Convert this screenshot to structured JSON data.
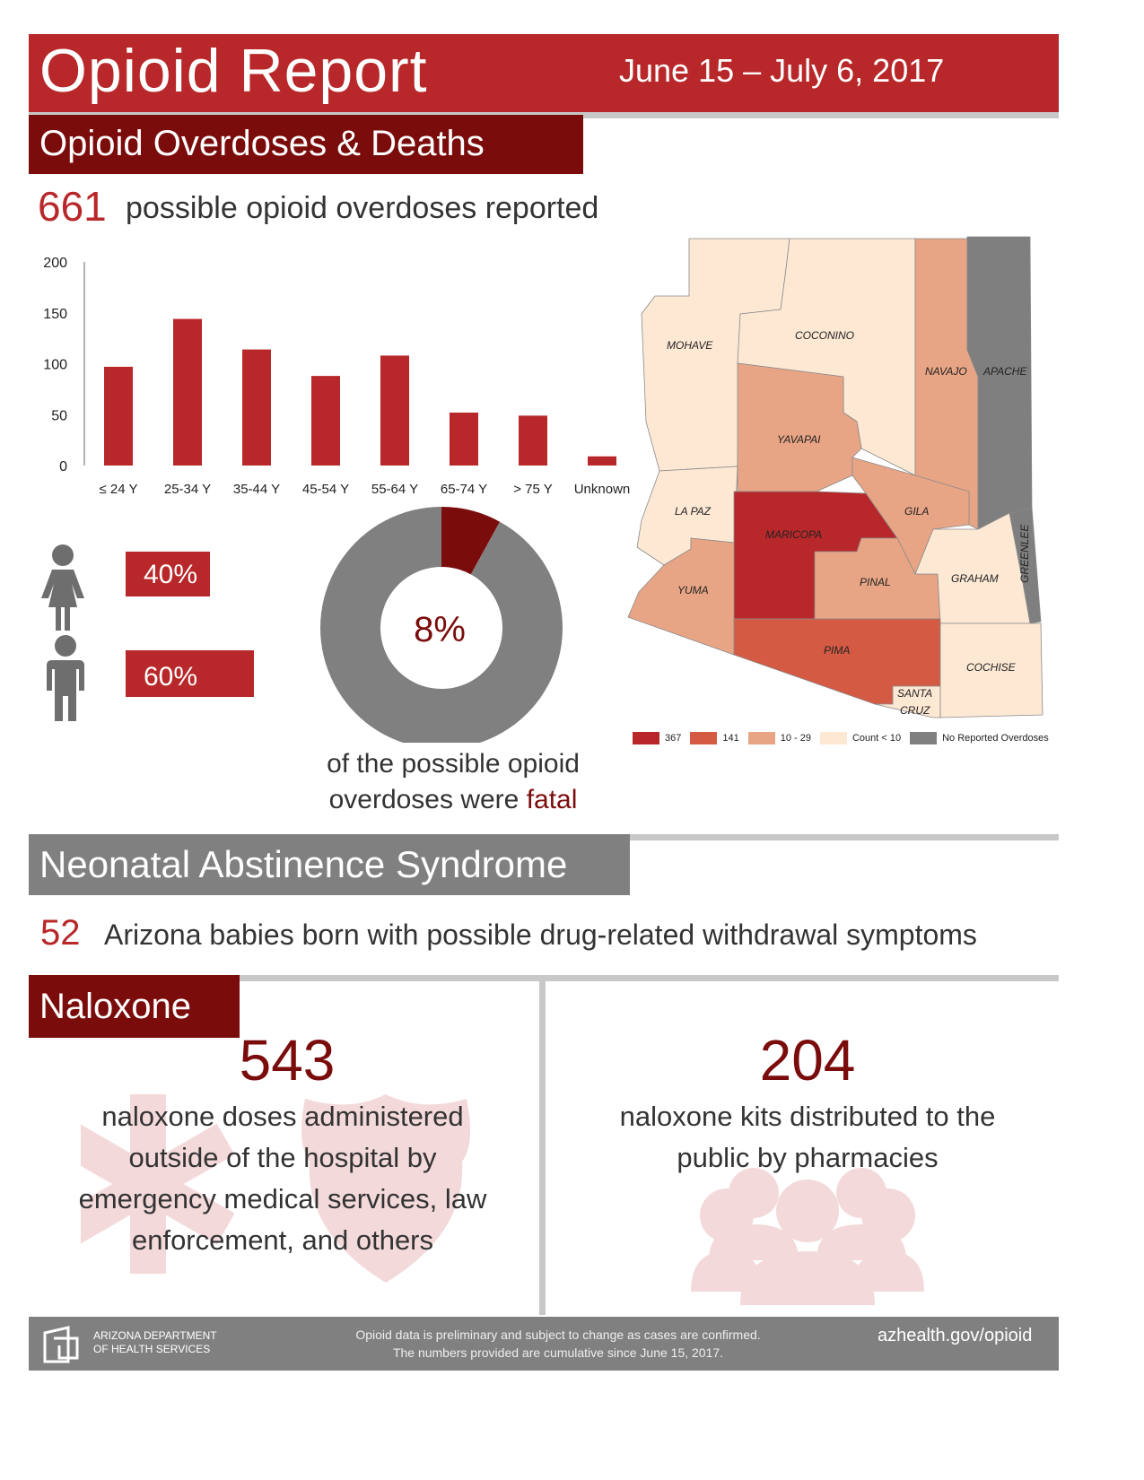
{
  "header": {
    "title": "Opioid Report",
    "date_range": "June 15 – July 6, 2017"
  },
  "overdoses": {
    "section_title": "Opioid Overdoses & Deaths",
    "count": "661",
    "count_text": "possible opioid overdoses reported",
    "female_pct": "40%",
    "male_pct": "60%",
    "fatal_pct": "8%",
    "caption_line1": "of the possible opioid",
    "caption_line2": "overdoses were ",
    "caption_fatal": "fatal"
  },
  "map": {
    "counties": {
      "mohave": "MOHAVE",
      "coconino": "COCONINO",
      "navajo": "NAVAJO",
      "apache": "APACHE",
      "yavapai": "YAVAPAI",
      "gila": "GILA",
      "la_paz": "LA PAZ",
      "maricopa": "MARICOPA",
      "greenlee": "GREENLEE",
      "yuma": "YUMA",
      "pinal": "PINAL",
      "graham": "GRAHAM",
      "pima": "PIMA",
      "cochise": "COCHISE",
      "santa_cruz_1": "SANTA",
      "santa_cruz_2": "CRUZ"
    },
    "legend": [
      {
        "label": "367",
        "color": "#b8282a"
      },
      {
        "label": "141",
        "color": "#d45a44"
      },
      {
        "label": "10 - 29",
        "color": "#e8a585"
      },
      {
        "label": "Count < 10",
        "color": "#fde8d4"
      },
      {
        "label": "No Reported Overdoses",
        "color": "#7f7f7f"
      }
    ]
  },
  "chart_data": [
    {
      "type": "bar",
      "categories": [
        "≤ 24 Y",
        "25-34 Y",
        "35-44 Y",
        "45-54 Y",
        "55-64 Y",
        "65-74 Y",
        "> 75 Y",
        "Unknown"
      ],
      "values": [
        97,
        144,
        114,
        88,
        108,
        52,
        49,
        9
      ],
      "ylim": [
        0,
        200
      ],
      "yticks": [
        "0",
        "50",
        "100",
        "150",
        "200"
      ],
      "color": "#b8282a"
    },
    {
      "type": "pie",
      "donut": true,
      "slices": [
        {
          "label": "fatal",
          "value": 8,
          "color": "#7b0c0c"
        },
        {
          "label": "non-fatal",
          "value": 92,
          "color": "#808080"
        }
      ]
    }
  ],
  "nas": {
    "section_title": "Neonatal Abstinence Syndrome",
    "count": "52",
    "text": "Arizona babies born with possible drug-related withdrawal symptoms"
  },
  "naloxone": {
    "section_title": "Naloxone",
    "doses_count": "543",
    "doses_text": "naloxone doses administered outside of the hospital by emergency medical services, law enforcement, and others",
    "kits_count": "204",
    "kits_text": "naloxone kits distributed to the public by pharmacies"
  },
  "footer": {
    "org_line1": "ARIZONA DEPARTMENT",
    "org_line2": "OF HEALTH SERVICES",
    "note_line1": "Opioid data is preliminary and subject to change as cases are confirmed.",
    "note_line2": "The numbers provided are cumulative since June 15, 2017.",
    "url": "azhealth.gov/opioid"
  }
}
